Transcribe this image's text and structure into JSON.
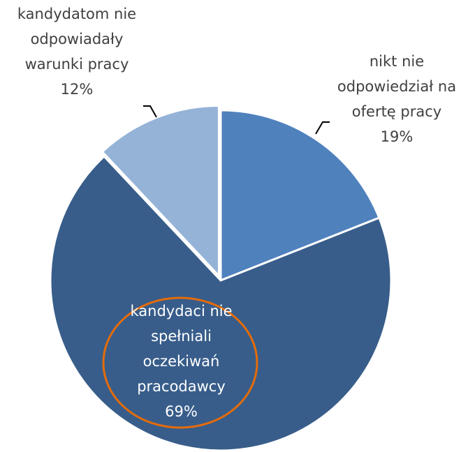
{
  "chart_data": {
    "type": "pie",
    "categories": [
      "nikt nie odpowiedział na ofertę pracy",
      "kandydaci nie spełniali oczekiwań pracodawcy",
      "kandydatom nie odpowiadały warunki pracy"
    ],
    "values": [
      19,
      69,
      12
    ],
    "value_labels": [
      "19%",
      "69%",
      "12%"
    ],
    "colors": [
      "#4f81bd",
      "#385d8a",
      "#95b3d7"
    ]
  }
}
